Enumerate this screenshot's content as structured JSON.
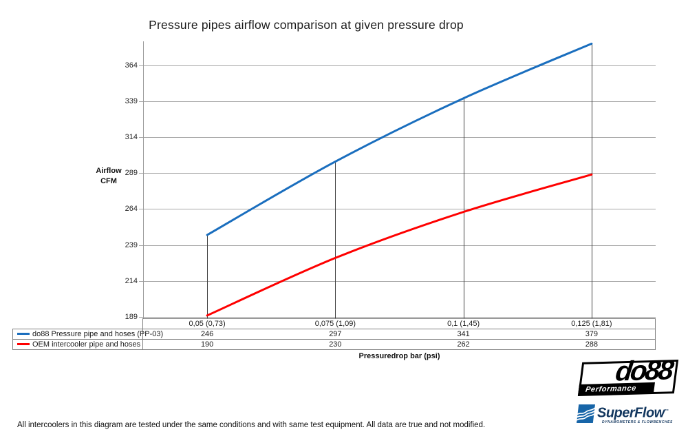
{
  "title": "Pressure pipes airflow comparison at given pressure drop",
  "chart_data": {
    "type": "line",
    "title": "Pressure pipes airflow comparison at given pressure drop",
    "xlabel": "Pressuredrop bar (psi)",
    "ylabel": "Airflow CFM",
    "ylabel_line1": "Airflow",
    "ylabel_line2": "CFM",
    "categories": [
      "0,05 (0,73)",
      "0,075 (1,09)",
      "0,1 (1,45)",
      "0,125 (1,81)"
    ],
    "yticks": [
      189,
      214,
      239,
      264,
      289,
      314,
      339,
      364
    ],
    "ylim": [
      189,
      382
    ],
    "grid": true,
    "legend_position": "bottom-table",
    "series": [
      {
        "name": "do88 Pressure pipe and hoses (PP-03)",
        "color": "#1a6ebe",
        "values": [
          246,
          297,
          341,
          379
        ]
      },
      {
        "name": "OEM intercooler pipe and hoses",
        "color": "#fe0000",
        "values": [
          190,
          230,
          262,
          288
        ]
      }
    ]
  },
  "footer_note": "All intercoolers in this diagram are tested under the same conditions and with same test equipment. All data are true and not modified.",
  "logos": {
    "do88_text": "do88",
    "do88_sub": "Performance",
    "superflow_text": "SuperFlow",
    "superflow_tm": "™",
    "superflow_sub": "DYNAMOMETERS & FLOWBENCHES"
  },
  "colors": {
    "series_blue": "#1a6ebe",
    "series_red": "#fe0000",
    "gridline": "#a6a6a6",
    "axis": "#9b9b9b",
    "dropline": "#404040",
    "table_border": "#808080",
    "superflow_blue": "#1765a8",
    "superflow_navy": "#12365e"
  }
}
